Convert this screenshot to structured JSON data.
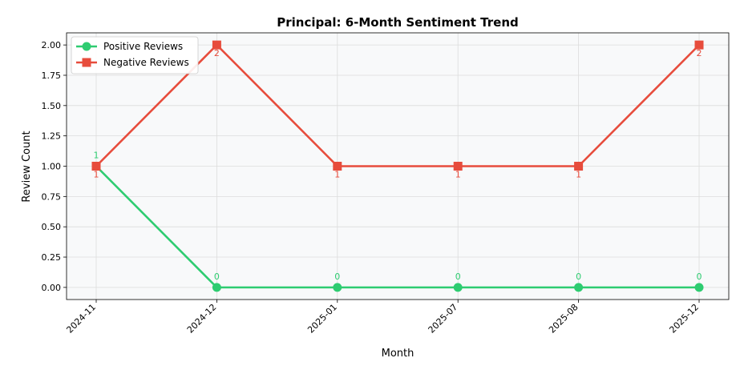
{
  "chart_data": {
    "type": "line",
    "title": "Principal: 6-Month Sentiment Trend",
    "xlabel": "Month",
    "ylabel": "Review Count",
    "categories": [
      "2024-11",
      "2024-12",
      "2025-01",
      "2025-07",
      "2025-08",
      "2025-12"
    ],
    "ylim": [
      -0.1,
      2.1
    ],
    "yticks": [
      0.0,
      0.25,
      0.5,
      0.75,
      1.0,
      1.25,
      1.5,
      1.75,
      2.0
    ],
    "ytick_labels": [
      "0.00",
      "0.25",
      "0.50",
      "0.75",
      "1.00",
      "1.25",
      "1.50",
      "1.75",
      "2.00"
    ],
    "grid": true,
    "legend_position": "top-left",
    "series": [
      {
        "name": "Positive Reviews",
        "values": [
          1,
          0,
          0,
          0,
          0,
          0
        ],
        "data_labels": [
          "1",
          "0",
          "0",
          "0",
          "0",
          "0"
        ],
        "color": "#2ecc71",
        "marker": "circle"
      },
      {
        "name": "Negative Reviews",
        "values": [
          1,
          2,
          1,
          1,
          1,
          2
        ],
        "data_labels": [
          "1",
          "2",
          "1",
          "1",
          "1",
          "2"
        ],
        "color": "#e74c3c",
        "marker": "square"
      }
    ],
    "plot_background": "#f8f9fa"
  }
}
